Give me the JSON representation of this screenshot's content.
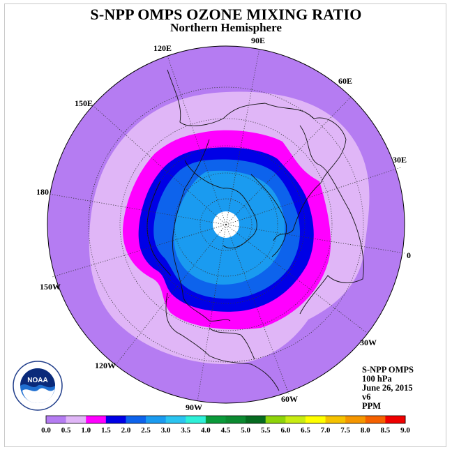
{
  "title": "S-NPP OMPS OZONE MIXING RATIO",
  "subtitle": "Northern Hemisphere",
  "longitude_labels": [
    "90E",
    "60E",
    "30E",
    "0",
    "30W",
    "60W",
    "90W",
    "120W",
    "150W",
    "180",
    "150E",
    "120E"
  ],
  "info": {
    "instrument": "S-NPP OMPS",
    "level": "100 hPa",
    "date": "June 26, 2015",
    "version": "v6",
    "units": "PPM"
  },
  "logo": {
    "text": "NOAA",
    "ring_text": "NATIONAL OCEANIC AND ATMOSPHERIC ADMINISTRATION · U.S. DEPARTMENT OF COMMERCE"
  },
  "colorbar": {
    "labels": [
      "0.0",
      "0.5",
      "1.0",
      "1.5",
      "2.0",
      "2.5",
      "3.0",
      "3.5",
      "4.0",
      "4.5",
      "5.0",
      "5.5",
      "6.0",
      "6.5",
      "7.0",
      "7.5",
      "8.0",
      "8.5",
      "9.0"
    ],
    "colors": [
      "#b57cf2",
      "#e0b6f7",
      "#ff00ff",
      "#0000e6",
      "#0d63ec",
      "#1a9bf0",
      "#2bc4f0",
      "#2ef0d8",
      "#0a9a3a",
      "#0b8a30",
      "#066b20",
      "#8ed40a",
      "#c8ec12",
      "#ffff00",
      "#f5c200",
      "#f59600",
      "#f56100",
      "#ef0000",
      "#8b5a3c"
    ]
  },
  "map_colors": {
    "band_0_0.5": "#b57cf2",
    "band_0.5_1.0": "#e0b6f7",
    "band_1.0_1.5": "#ff00ff",
    "band_1.5_2.0": "#0000e6",
    "band_2.0_2.5": "#0d63ec",
    "band_2.5_3.0": "#1a9bf0",
    "pole": "#ffffff"
  }
}
